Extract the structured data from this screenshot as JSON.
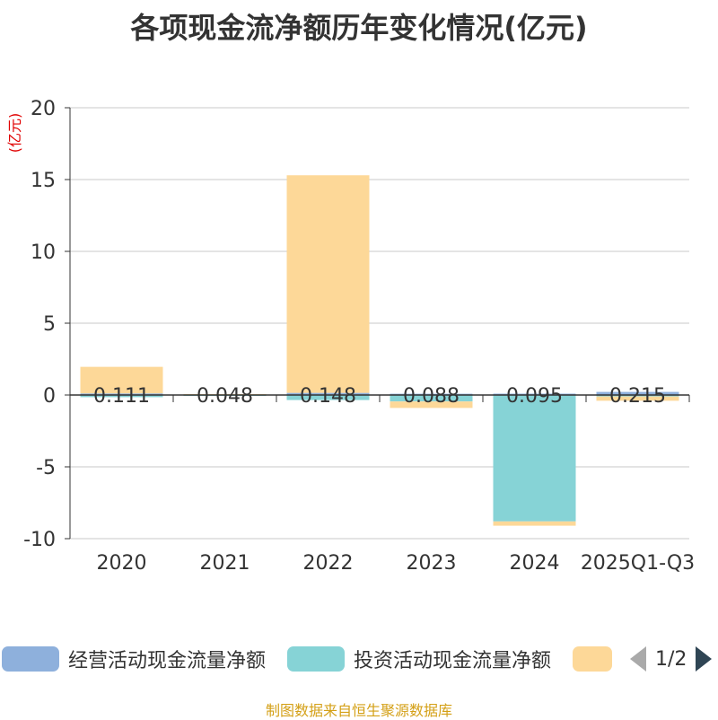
{
  "title": "各项现金流净额历年变化情况(亿元)",
  "source": "制图数据来自恒生聚源数据库",
  "legend": {
    "items": [
      {
        "label": "经营活动现金流量净额",
        "color": "#8eb0dc"
      },
      {
        "label": "投资活动现金流量净额",
        "color": "#86d3d6"
      },
      {
        "label": "",
        "color": "#fdd898"
      }
    ],
    "page": "1/2",
    "prev_color": "#aaaaaa",
    "next_color": "#2f4554"
  },
  "chart_data": {
    "type": "bar",
    "stacked": true,
    "categories": [
      "2020",
      "2021",
      "2022",
      "2023",
      "2024",
      "2025Q1-Q3"
    ],
    "ylabel": "(亿元)",
    "ylim": [
      -10,
      20
    ],
    "yticks": [
      20,
      15,
      10,
      5,
      0,
      -5,
      -10
    ],
    "grid": true,
    "series": [
      {
        "name": "经营活动现金流量净额",
        "color": "#8eb0dc",
        "values": [
          0.111,
          0.048,
          0.148,
          0.088,
          0.095,
          0.215
        ],
        "labels": [
          "0.111",
          "0.048",
          "0.148",
          "0.088",
          "0.095",
          "0.215"
        ]
      },
      {
        "name": "投资活动现金流量净额",
        "color": "#86d3d6",
        "values": [
          -0.15,
          -0.05,
          -0.35,
          -0.45,
          -8.8,
          -0.1
        ]
      },
      {
        "color": "#fdd898",
        "values": [
          1.85,
          0.02,
          15.15,
          -0.45,
          -0.3,
          -0.3
        ]
      }
    ]
  }
}
